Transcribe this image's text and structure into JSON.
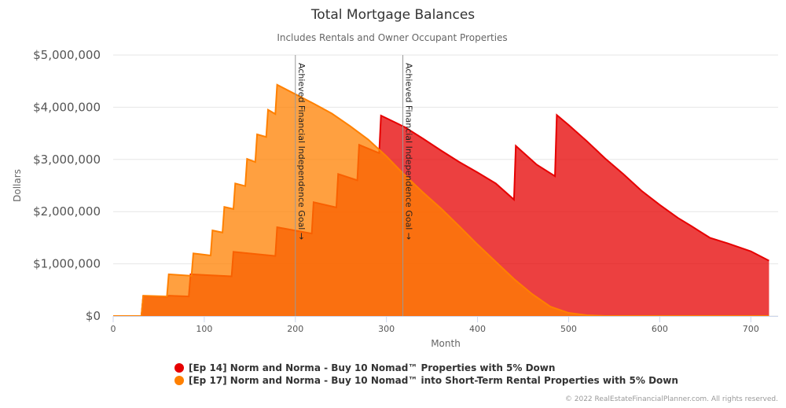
{
  "chart_data": {
    "type": "area",
    "title": "Total Mortgage Balances",
    "subtitle": "Includes Rentals and Owner Occupant Properties",
    "xlabel": "Month",
    "ylabel": "Dollars",
    "xlim": [
      0,
      730
    ],
    "ylim": [
      0,
      5000000
    ],
    "x_ticks": [
      0,
      100,
      200,
      300,
      400,
      500,
      600,
      700
    ],
    "x_tick_labels": [
      "0",
      "100",
      "200",
      "300",
      "400",
      "500",
      "600",
      "700"
    ],
    "y_ticks": [
      0,
      1000000,
      2000000,
      3000000,
      4000000,
      5000000
    ],
    "y_tick_labels": [
      "$0",
      "$1,000,000",
      "$2,000,000",
      "$3,000,000",
      "$4,000,000",
      "$5,000,000"
    ],
    "grid": "horizontal",
    "legend_position": "bottom",
    "annotations": [
      {
        "x": 200,
        "text": "Achieved Financial Independence Goal →"
      },
      {
        "x": 318,
        "text": "Achieved Financial Independence Goal →"
      }
    ],
    "series": [
      {
        "name": "[Ep 14] Norm and Norma - Buy 10 Nomad™ Properties with 5% Down",
        "color": "#e60000",
        "points": [
          [
            0,
            0
          ],
          [
            31,
            0
          ],
          [
            33,
            380000
          ],
          [
            59,
            365000
          ],
          [
            61,
            390000
          ],
          [
            83,
            375000
          ],
          [
            85,
            800000
          ],
          [
            130,
            760000
          ],
          [
            132,
            1230000
          ],
          [
            178,
            1150000
          ],
          [
            180,
            1700000
          ],
          [
            218,
            1580000
          ],
          [
            220,
            2180000
          ],
          [
            245,
            2080000
          ],
          [
            247,
            2720000
          ],
          [
            268,
            2600000
          ],
          [
            270,
            3280000
          ],
          [
            292,
            3120000
          ],
          [
            294,
            3840000
          ],
          [
            320,
            3620000
          ],
          [
            340,
            3400000
          ],
          [
            360,
            3170000
          ],
          [
            380,
            2950000
          ],
          [
            400,
            2750000
          ],
          [
            420,
            2540000
          ],
          [
            440,
            2230000
          ],
          [
            442,
            3260000
          ],
          [
            465,
            2900000
          ],
          [
            485,
            2680000
          ],
          [
            487,
            3850000
          ],
          [
            500,
            3660000
          ],
          [
            520,
            3350000
          ],
          [
            540,
            3020000
          ],
          [
            560,
            2720000
          ],
          [
            580,
            2400000
          ],
          [
            600,
            2130000
          ],
          [
            620,
            1880000
          ],
          [
            635,
            1720000
          ],
          [
            655,
            1500000
          ],
          [
            675,
            1390000
          ],
          [
            700,
            1240000
          ],
          [
            720,
            1060000
          ]
        ]
      },
      {
        "name": "[Ep 17] Norm and Norma - Buy 10 Nomad™ into Short-Term Rental Properties with 5% Down",
        "color": "#ff8000",
        "points": [
          [
            0,
            0
          ],
          [
            31,
            0
          ],
          [
            33,
            390000
          ],
          [
            59,
            375000
          ],
          [
            61,
            800000
          ],
          [
            86,
            770000
          ],
          [
            88,
            1200000
          ],
          [
            107,
            1160000
          ],
          [
            109,
            1640000
          ],
          [
            120,
            1600000
          ],
          [
            122,
            2090000
          ],
          [
            132,
            2050000
          ],
          [
            134,
            2540000
          ],
          [
            145,
            2490000
          ],
          [
            147,
            3010000
          ],
          [
            156,
            2950000
          ],
          [
            158,
            3480000
          ],
          [
            168,
            3430000
          ],
          [
            170,
            3950000
          ],
          [
            178,
            3870000
          ],
          [
            180,
            4430000
          ],
          [
            200,
            4250000
          ],
          [
            220,
            4070000
          ],
          [
            240,
            3880000
          ],
          [
            260,
            3640000
          ],
          [
            280,
            3380000
          ],
          [
            300,
            3060000
          ],
          [
            320,
            2700000
          ],
          [
            340,
            2370000
          ],
          [
            360,
            2060000
          ],
          [
            380,
            1720000
          ],
          [
            400,
            1370000
          ],
          [
            420,
            1040000
          ],
          [
            440,
            710000
          ],
          [
            460,
            420000
          ],
          [
            480,
            180000
          ],
          [
            500,
            60000
          ],
          [
            520,
            15000
          ],
          [
            540,
            0
          ],
          [
            720,
            0
          ]
        ]
      }
    ]
  },
  "copyright": "© 2022 RealEstateFinancialPlanner.com. All rights reserved."
}
